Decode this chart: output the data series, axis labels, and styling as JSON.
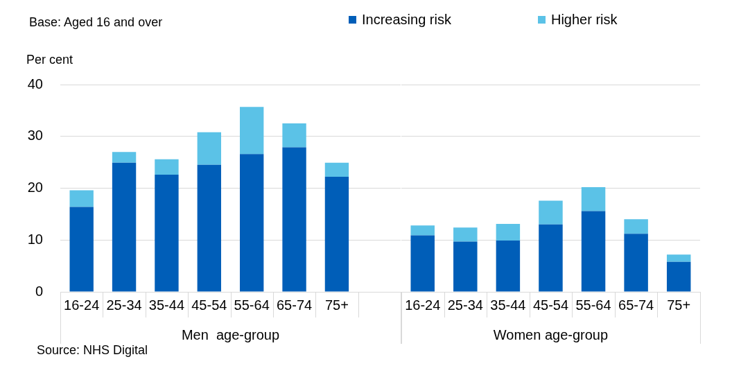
{
  "chart_data": [
    {
      "type": "bar",
      "title": "Base: Aged 16 and over",
      "ylabel": "Per cent",
      "xlabel": "Men  age-group",
      "categories": [
        "16-24",
        "25-34",
        "35-44",
        "45-54",
        "55-64",
        "65-74",
        "75+",
        null
      ],
      "stacked": true,
      "series": [
        {
          "name": "Increasing risk",
          "color": "#005eb8",
          "values": [
            16.4,
            24.9,
            22.6,
            24.5,
            26.6,
            27.9,
            22.2,
            null
          ]
        },
        {
          "name": "Higher risk",
          "color": "#5bc2e7",
          "values": [
            3.2,
            2.1,
            3.0,
            6.3,
            9.1,
            4.6,
            2.7,
            null
          ]
        }
      ],
      "ylim": [
        0,
        40
      ],
      "yticks": [
        0,
        10,
        20,
        30,
        40
      ],
      "grid": "y",
      "legend": "top",
      "annotations": [
        "Source: NHS Digital"
      ]
    },
    {
      "type": "bar",
      "xlabel": "Women age-group",
      "categories": [
        "16-24",
        "25-34",
        "35-44",
        "45-54",
        "55-64",
        "65-74",
        "75+"
      ],
      "stacked": true,
      "series": [
        {
          "color": "#005eb8",
          "values": [
            10.9,
            9.7,
            9.9,
            13.0,
            15.6,
            11.2,
            5.8
          ]
        },
        {
          "color": "#5bc2e7",
          "values": [
            1.9,
            2.7,
            3.2,
            4.6,
            4.6,
            2.8,
            1.4
          ]
        }
      ],
      "ylim": [
        0,
        40
      ],
      "yticks": [
        0,
        10,
        20,
        30,
        40
      ],
      "grid": "y",
      "tick_labels": "x"
    }
  ]
}
